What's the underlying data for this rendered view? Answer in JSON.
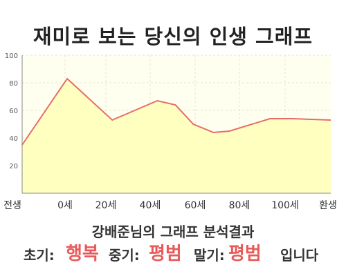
{
  "title": "재미로 보는 당신의 인생 그래프",
  "result": {
    "heading": "강배준님의 그래프 분석결과",
    "early_label": "초기:",
    "early_value": "행복",
    "mid_label": "중기:",
    "mid_value": "평범",
    "late_label": "말기:",
    "late_value": "평범",
    "suffix": "입니다"
  },
  "colors": {
    "line": "#e86a6a",
    "fill": "#ffffc0",
    "highlight_text": "#e85a5a"
  },
  "chart_data": {
    "type": "area",
    "title": "",
    "xlabel": "",
    "ylabel": "",
    "ylim": [
      0,
      100
    ],
    "y_ticks": [
      20,
      40,
      60,
      80,
      100
    ],
    "x_tick_labels": [
      "전생",
      "0세",
      "20세",
      "40세",
      "60세",
      "80세",
      "100세",
      "환생"
    ],
    "grid": true,
    "series": [
      {
        "points": [
          {
            "x": -20,
            "y": 35
          },
          {
            "x": 0,
            "y": 83
          },
          {
            "x": 20,
            "y": 53
          },
          {
            "x": 40,
            "y": 67
          },
          {
            "x": 48,
            "y": 64
          },
          {
            "x": 56,
            "y": 50
          },
          {
            "x": 65,
            "y": 44
          },
          {
            "x": 72,
            "y": 45
          },
          {
            "x": 90,
            "y": 54
          },
          {
            "x": 100,
            "y": 54
          },
          {
            "x": 117,
            "y": 53
          }
        ]
      }
    ]
  }
}
